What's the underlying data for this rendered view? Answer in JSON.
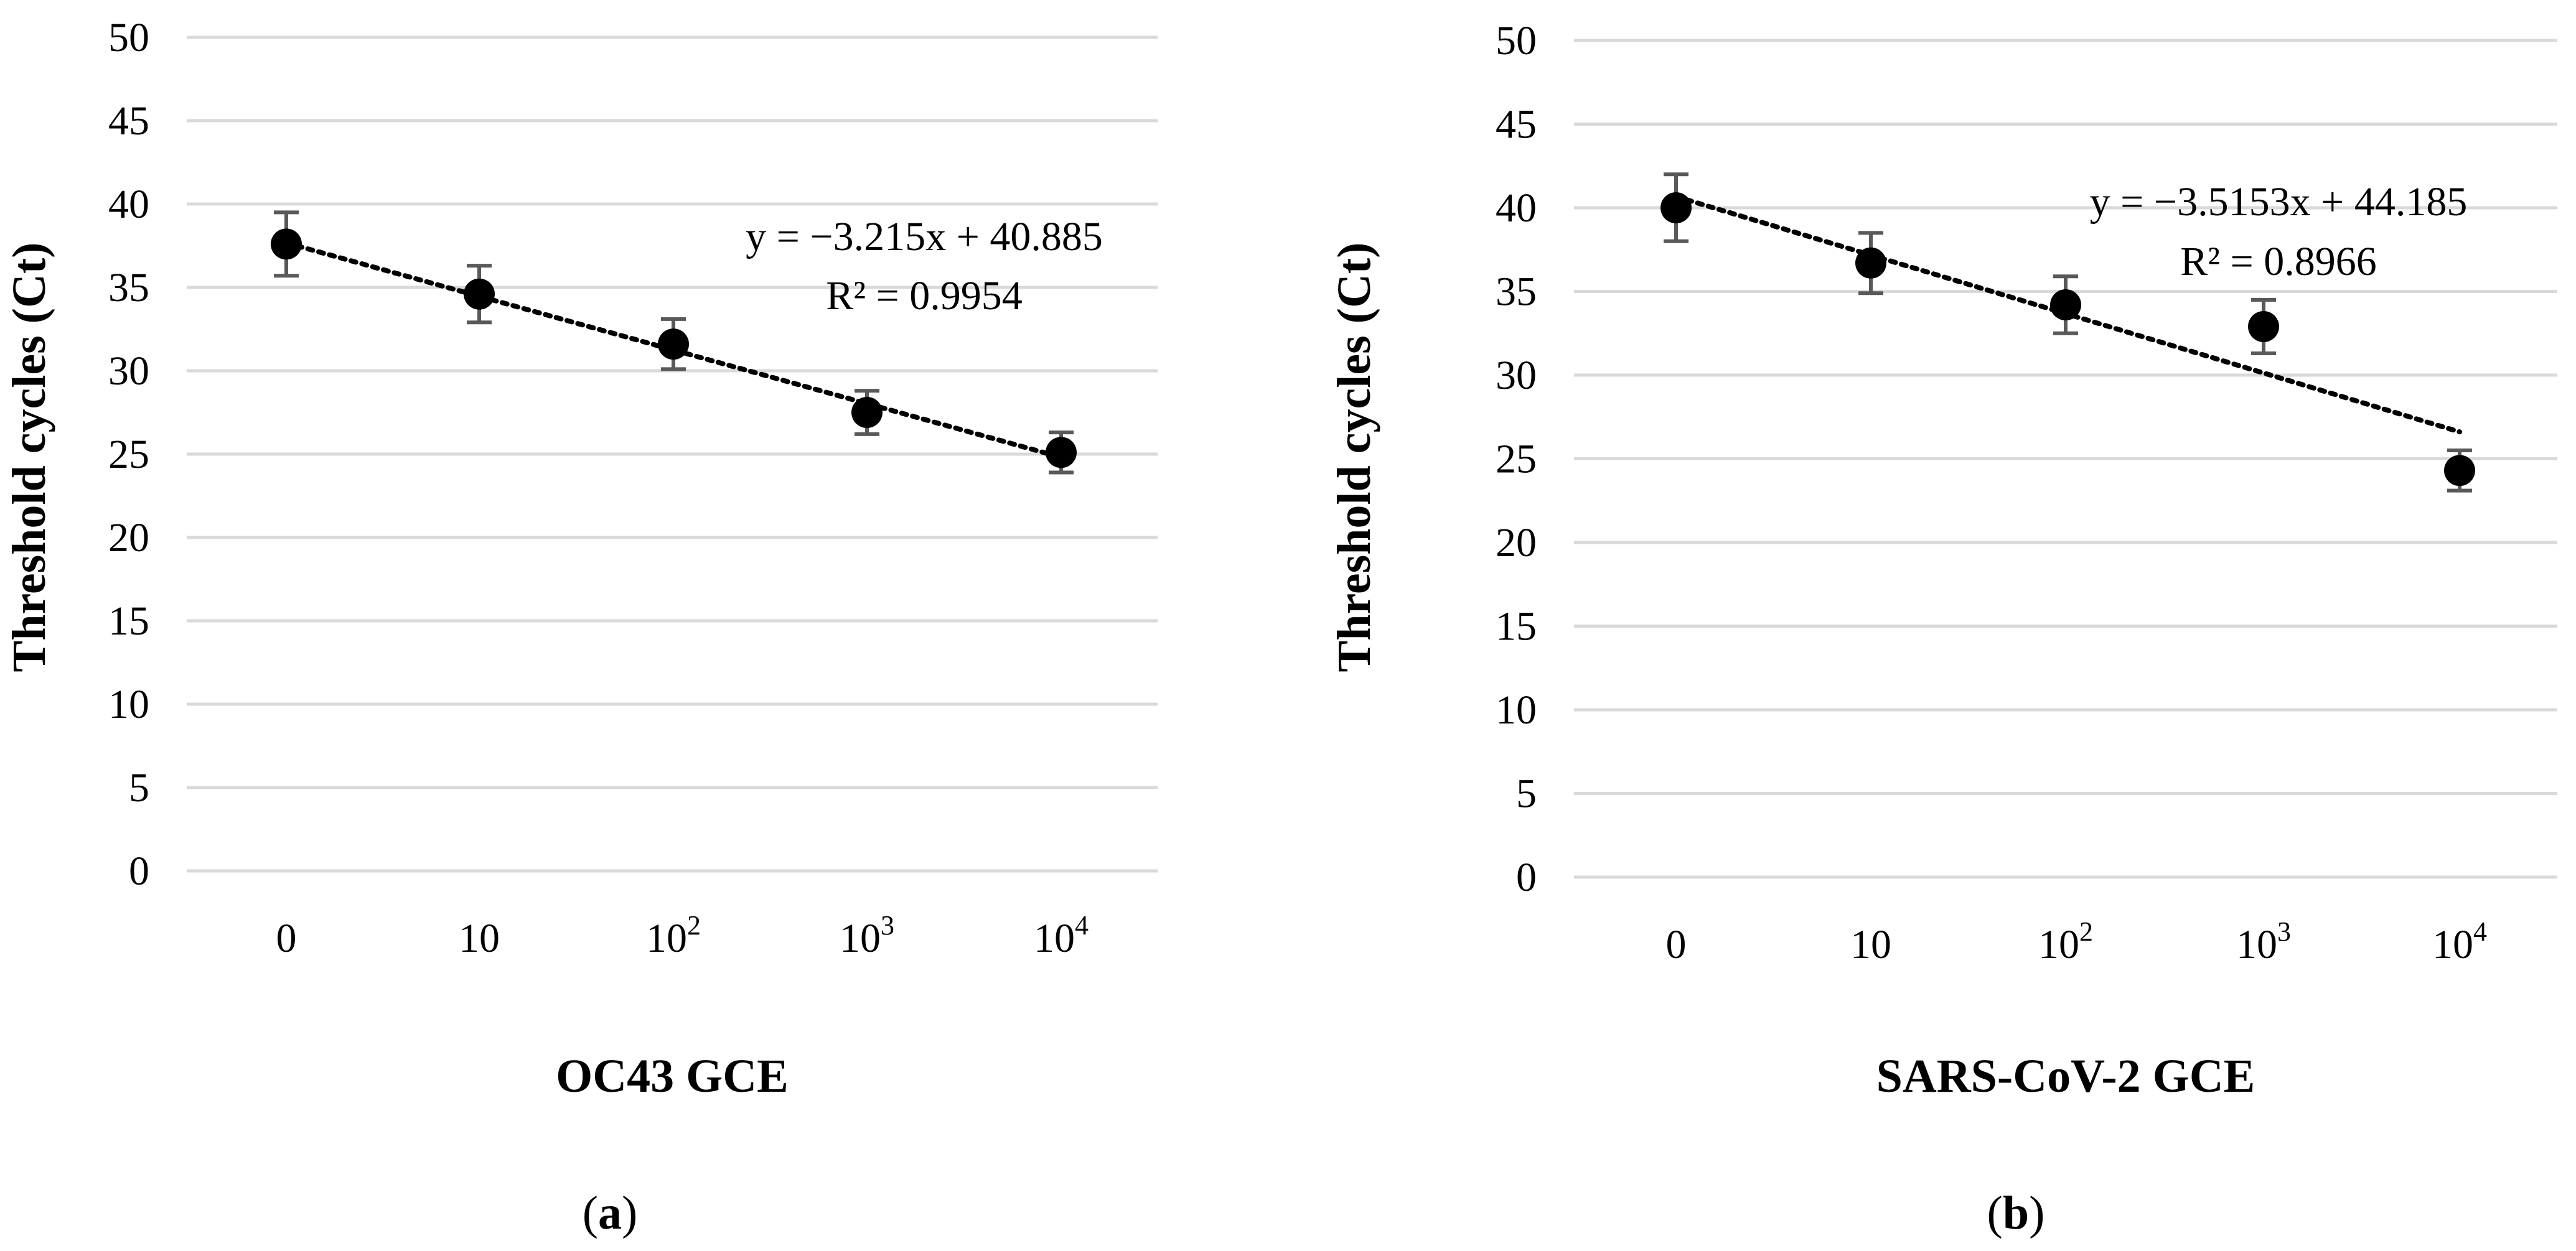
{
  "chart_data": [
    {
      "type": "scatter",
      "panel_label": "a",
      "categories": [
        "0",
        "10",
        "10^2",
        "10^3",
        "10^4"
      ],
      "tick_labels": [
        {
          "base": "0",
          "exp": ""
        },
        {
          "base": "10",
          "exp": ""
        },
        {
          "base": "10",
          "exp": "2"
        },
        {
          "base": "10",
          "exp": "3"
        },
        {
          "base": "10",
          "exp": "4"
        }
      ],
      "values": [
        37.6,
        34.6,
        31.6,
        27.5,
        25.1
      ],
      "error": [
        1.9,
        1.7,
        1.5,
        1.3,
        1.2
      ],
      "trendline": {
        "type": "linear",
        "slope": -3.215,
        "intercept": 40.885,
        "style": "dotted"
      },
      "equation": "y = −3.215x + 40.885",
      "r_squared": "R² = 0.9954",
      "xlabel": "OC43 GCE",
      "ylabel": "Threshold cycles (Ct)",
      "ylim": [
        0,
        50
      ],
      "yticks": [
        0,
        5,
        10,
        15,
        20,
        25,
        30,
        35,
        40,
        45,
        50
      ],
      "grid": true
    },
    {
      "type": "scatter",
      "panel_label": "b",
      "categories": [
        "0",
        "10",
        "10^2",
        "10^3",
        "10^4"
      ],
      "tick_labels": [
        {
          "base": "0",
          "exp": ""
        },
        {
          "base": "10",
          "exp": ""
        },
        {
          "base": "10",
          "exp": "2"
        },
        {
          "base": "10",
          "exp": "3"
        },
        {
          "base": "10",
          "exp": "4"
        }
      ],
      "values": [
        40.0,
        36.7,
        34.2,
        32.9,
        24.3
      ],
      "error": [
        2.0,
        1.8,
        1.7,
        1.6,
        1.2
      ],
      "trendline": {
        "type": "linear",
        "slope": -3.5153,
        "intercept": 44.185,
        "style": "dotted"
      },
      "equation": "y = −3.5153x + 44.185",
      "r_squared": "R² = 0.8966",
      "xlabel": "SARS-CoV-2 GCE",
      "ylabel": "Threshold cycles (Ct)",
      "ylim": [
        0,
        50
      ],
      "yticks": [
        0,
        5,
        10,
        15,
        20,
        25,
        30,
        35,
        40,
        45,
        50
      ],
      "grid": true
    }
  ]
}
